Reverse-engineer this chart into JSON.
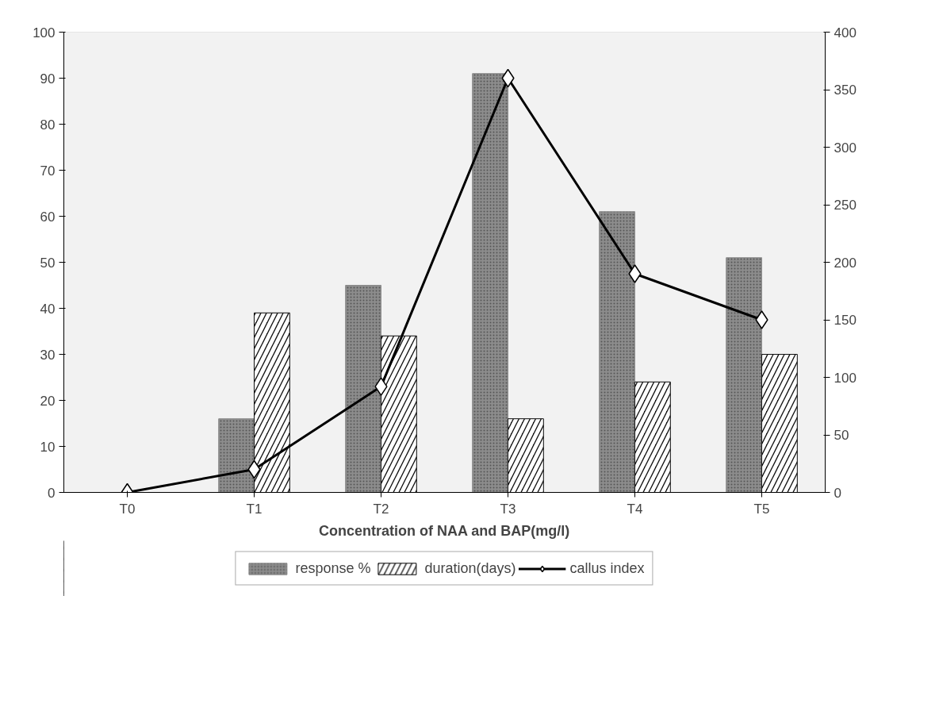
{
  "chart_data": {
    "type": "bar",
    "xlabel": "Concentration of NAA and BAP(mg/l)",
    "categories": [
      "T0",
      "T1",
      "T2",
      "T3",
      "T4",
      "T5"
    ],
    "series": [
      {
        "name": "response %",
        "color": "#8c8c8c",
        "values": [
          null,
          16,
          45,
          91,
          61,
          51
        ]
      },
      {
        "name": "duration(days)",
        "color": "#111111",
        "values": [
          null,
          39,
          34,
          16,
          24,
          30
        ]
      },
      {
        "name": "callus index",
        "type": "line",
        "axis": "y2",
        "color": "#000000",
        "marker": "diamond",
        "values": [
          0,
          20,
          92,
          360,
          190,
          150
        ]
      }
    ],
    "ylim": [
      0,
      100
    ],
    "yticks": [
      0,
      10,
      20,
      30,
      40,
      50,
      60,
      70,
      80,
      90,
      100
    ],
    "y2lim": [
      0,
      400
    ],
    "y2ticks": [
      0,
      50,
      100,
      150,
      200,
      250,
      300,
      350,
      400
    ],
    "grid": false,
    "legend": "bottom"
  }
}
